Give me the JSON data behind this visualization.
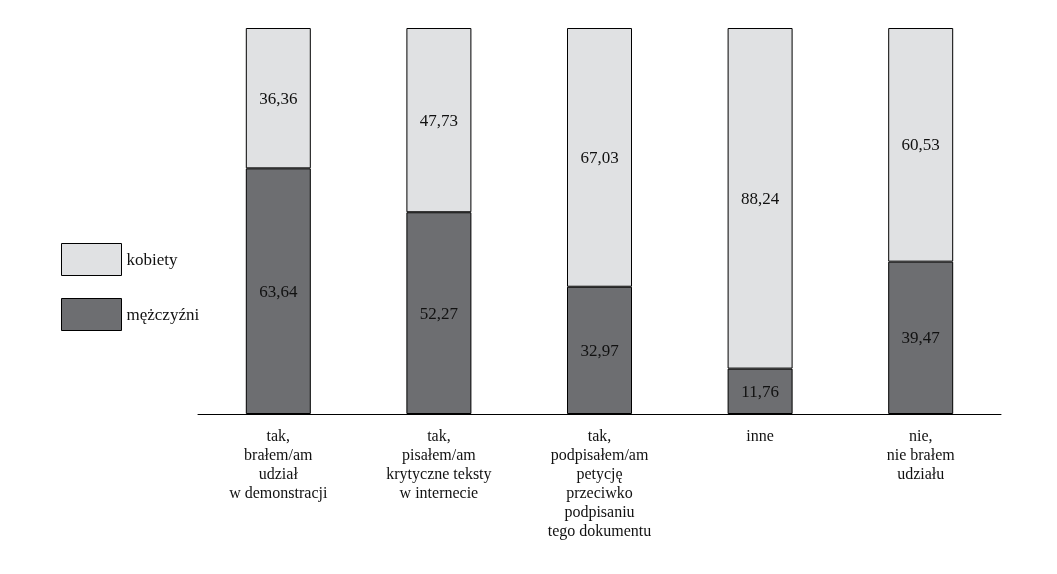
{
  "chart_data": {
    "type": "bar",
    "stacked": true,
    "categories": [
      "tak,\nbrałem/am\nudział\nw demonstracji",
      "tak,\npisałem/am\nkrytyczne teksty\nw internecie",
      "tak,\npodpisałem/am\npetycję\nprzeciwko\npodpisaniu\ntego dokumentu",
      "inne",
      "nie,\nnie brałem\nudziału"
    ],
    "series": [
      {
        "name": "mężczyźni",
        "color": "#6d6e71",
        "values": [
          63.64,
          52.27,
          32.97,
          11.76,
          39.47
        ],
        "value_labels": [
          "63,64",
          "52,27",
          "32,97",
          "11,76",
          "39,47"
        ]
      },
      {
        "name": "kobiety",
        "color": "#e0e1e3",
        "values": [
          36.36,
          47.73,
          67.03,
          88.24,
          60.53
        ],
        "value_labels": [
          "36,36",
          "47,73",
          "67,03",
          "88,24",
          "60,53"
        ]
      }
    ],
    "legend": "left"
  }
}
